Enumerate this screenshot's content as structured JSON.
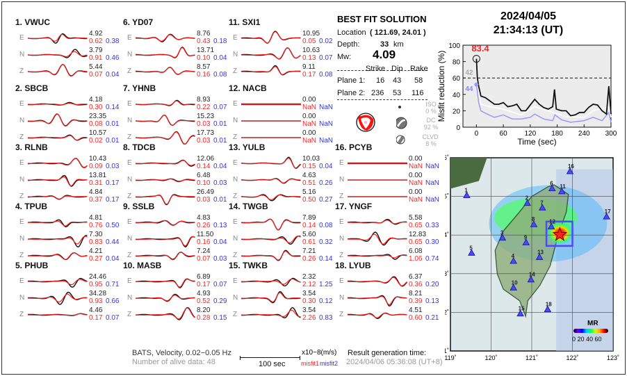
{
  "colors": {
    "observed": "#111111",
    "synthetic": "#ff1a1a",
    "misfit1": "#ff2222",
    "misfit2": "#3333dd",
    "station": "#4a4aff"
  },
  "stations": [
    {
      "label": "1.  VWUC",
      "comps": [
        {
          "c": "E",
          "amp": "4.92",
          "m1": "0.62",
          "m2": "0.38"
        },
        {
          "c": "N",
          "amp": "3.79",
          "m1": "0.91",
          "m2": "0.46"
        },
        {
          "c": "Z",
          "amp": "5.44",
          "m1": "0.07",
          "m2": "0.04"
        }
      ]
    },
    {
      "label": "2.  SBCB",
      "comps": [
        {
          "c": "E",
          "amp": "4.18",
          "m1": "0.30",
          "m2": "0.14"
        },
        {
          "c": "N",
          "amp": "23.35",
          "m1": "0.08",
          "m2": "0.01"
        },
        {
          "c": "Z",
          "amp": "10.57",
          "m1": "0.02",
          "m2": "0.01"
        }
      ]
    },
    {
      "label": "3.  RLNB",
      "comps": [
        {
          "c": "E",
          "amp": "10.43",
          "m1": "0.09",
          "m2": "0.03"
        },
        {
          "c": "N",
          "amp": "13.81",
          "m1": "0.31",
          "m2": "0.17"
        },
        {
          "c": "Z",
          "amp": "4.84",
          "m1": "0.37",
          "m2": "0.17"
        }
      ]
    },
    {
      "label": "4.  TPUB",
      "comps": [
        {
          "c": "E",
          "amp": "4.81",
          "m1": "0.76",
          "m2": "0.50"
        },
        {
          "c": "N",
          "amp": "7.30",
          "m1": "0.83",
          "m2": "0.44"
        },
        {
          "c": "Z",
          "amp": "4.21",
          "m1": "0.27",
          "m2": "0.04"
        }
      ]
    },
    {
      "label": "5.  PHUB",
      "comps": [
        {
          "c": "E",
          "amp": "24.46",
          "m1": "0.95",
          "m2": "0.71"
        },
        {
          "c": "N",
          "amp": "34.28",
          "m1": "0.93",
          "m2": "0.66"
        },
        {
          "c": "Z",
          "amp": "4.46",
          "m1": "0.17",
          "m2": "0.07"
        }
      ]
    },
    {
      "label": "6.  YD07",
      "comps": [
        {
          "c": "E",
          "amp": "8.76",
          "m1": "0.43",
          "m2": "0.18"
        },
        {
          "c": "N",
          "amp": "13.71",
          "m1": "0.10",
          "m2": "0.04"
        },
        {
          "c": "Z",
          "amp": "8.57",
          "m1": "0.16",
          "m2": "0.08"
        }
      ]
    },
    {
      "label": "7.  YHNB",
      "comps": [
        {
          "c": "E",
          "amp": "8.93",
          "m1": "0.22",
          "m2": "0.07"
        },
        {
          "c": "N",
          "amp": "15.23",
          "m1": "0.03",
          "m2": "0.01"
        },
        {
          "c": "Z",
          "amp": "17.73",
          "m1": "0.03",
          "m2": "0.01"
        }
      ]
    },
    {
      "label": "8.  TDCB",
      "comps": [
        {
          "c": "E",
          "amp": "12.06",
          "m1": "0.14",
          "m2": "0.04"
        },
        {
          "c": "N",
          "amp": "6.48",
          "m1": "0.10",
          "m2": "0.03"
        },
        {
          "c": "Z",
          "amp": "26.49",
          "m1": "0.03",
          "m2": "0.01"
        }
      ]
    },
    {
      "label": "9.  SSLB",
      "comps": [
        {
          "c": "E",
          "amp": "4.83",
          "m1": "0.26",
          "m2": "0.13"
        },
        {
          "c": "N",
          "amp": "11.50",
          "m1": "0.16",
          "m2": "0.04"
        },
        {
          "c": "Z",
          "amp": "7.24",
          "m1": "0.07",
          "m2": "0.03"
        }
      ]
    },
    {
      "label": "10. MASB",
      "comps": [
        {
          "c": "E",
          "amp": "6.89",
          "m1": "0.17",
          "m2": "0.07"
        },
        {
          "c": "N",
          "amp": "4.93",
          "m1": "0.52",
          "m2": "0.29"
        },
        {
          "c": "Z",
          "amp": "8.20",
          "m1": "0.28",
          "m2": "0.15"
        }
      ]
    },
    {
      "label": "11. SXI1",
      "comps": [
        {
          "c": "E",
          "amp": "10.95",
          "m1": "0.05",
          "m2": "0.02"
        },
        {
          "c": "N",
          "amp": "10.63",
          "m1": "0.13",
          "m2": "0.07"
        },
        {
          "c": "Z",
          "amp": "9.11",
          "m1": "0.17",
          "m2": "0.08"
        }
      ]
    },
    {
      "label": "12. NACB",
      "comps": [
        {
          "c": "E",
          "amp": "0.00",
          "m1": "NaN",
          "m2": "NaN"
        },
        {
          "c": "N",
          "amp": "0.00",
          "m1": "NaN",
          "m2": "NaN"
        },
        {
          "c": "Z",
          "amp": "0.00",
          "m1": "NaN",
          "m2": "NaN"
        }
      ]
    },
    {
      "label": "13. YULB",
      "comps": [
        {
          "c": "E",
          "amp": "10.03",
          "m1": "0.15",
          "m2": "0.04"
        },
        {
          "c": "N",
          "amp": "4.63",
          "m1": "0.51",
          "m2": "0.26"
        },
        {
          "c": "Z",
          "amp": "5.16",
          "m1": "0.50",
          "m2": "0.27"
        }
      ]
    },
    {
      "label": "14. TWGB",
      "comps": [
        {
          "c": "E",
          "amp": "7.89",
          "m1": "0.14",
          "m2": "0.08"
        },
        {
          "c": "N",
          "amp": "5.60",
          "m1": "0.61",
          "m2": "0.32"
        },
        {
          "c": "Z",
          "amp": "7.21",
          "m1": "0.26",
          "m2": "0.14"
        }
      ]
    },
    {
      "label": "15. TWKB",
      "comps": [
        {
          "c": "E",
          "amp": "2.32",
          "m1": "2.12",
          "m2": "1.25"
        },
        {
          "c": "N",
          "amp": "3.54",
          "m1": "0.30",
          "m2": "0.12"
        },
        {
          "c": "Z",
          "amp": "3.54",
          "m1": "2.26",
          "m2": "0.83"
        }
      ]
    },
    {
      "label": "16. PCYB",
      "comps": [
        {
          "c": "E",
          "amp": "0.00",
          "m1": "NaN",
          "m2": "NaN"
        },
        {
          "c": "N",
          "amp": "0.00",
          "m1": "NaN",
          "m2": "NaN"
        },
        {
          "c": "Z",
          "amp": "0.00",
          "m1": "NaN",
          "m2": "NaN"
        }
      ]
    },
    {
      "label": "17. YNGF",
      "comps": [
        {
          "c": "E",
          "amp": "5.58",
          "m1": "0.65",
          "m2": "0.33"
        },
        {
          "c": "N",
          "amp": "12.83",
          "m1": "0.65",
          "m2": "0.30"
        },
        {
          "c": "Z",
          "amp": "6.08",
          "m1": "1.06",
          "m2": "0.74"
        }
      ]
    },
    {
      "label": "18. LYUB",
      "comps": [
        {
          "c": "E",
          "amp": "6.37",
          "m1": "0.36",
          "m2": "0.20"
        },
        {
          "c": "N",
          "amp": "8.21",
          "m1": "0.39",
          "m2": "0.13"
        },
        {
          "c": "Z",
          "amp": "4.51",
          "m1": "0.60",
          "m2": "0.21"
        }
      ]
    }
  ],
  "footer": {
    "network": "BATS, Velocity, 0.02−0.05 Hz",
    "alive": "Number of alive data: 48",
    "scale_label": "100 sec",
    "units": "x10−8(m/s)",
    "misfit1": "misfit1",
    "misfit2": "misfit2",
    "gen_title": "Result generation time:",
    "gen_time": "2024/04/06 05:36:08 (UT+8)"
  },
  "solution": {
    "title": "BEST FIT SOLUTION",
    "location_label": "Location",
    "location": "( 121.69,  24.01 )",
    "depth_label": "Depth:",
    "depth": "33",
    "depth_unit": "km",
    "mw_label": "Mw:",
    "mw": "4.09",
    "headers": [
      "Strike",
      "Dip",
      "Rake"
    ],
    "planes": [
      {
        "label": "Plane 1:",
        "vals": [
          "16",
          "43",
          "58"
        ]
      },
      {
        "label": "Plane 2:",
        "vals": [
          "236",
          "53",
          "116"
        ]
      }
    ],
    "components": [
      {
        "name": "ISO",
        "pct": "0 %"
      },
      {
        "name": "DC",
        "pct": "92 %"
      },
      {
        "name": "CLVD",
        "pct": "8 %"
      }
    ]
  },
  "event": {
    "date": "2024/04/05",
    "time": "21:34:13  (UT)"
  },
  "chart_data": {
    "type": "line",
    "xlabel": "Time (sec)",
    "ylabel": "Misfit reduction (%)",
    "xlim": [
      -30,
      300
    ],
    "ylim": [
      0,
      100
    ],
    "xticks": [
      0,
      60,
      120,
      180,
      240,
      300
    ],
    "yticks": [
      0,
      20,
      40,
      60,
      80,
      100
    ],
    "grid": false,
    "threshold": 60,
    "annotations": [
      {
        "text": "83.4",
        "x": 0,
        "y": 83.4,
        "color": "#ff2222"
      },
      {
        "text": "42",
        "color": "#aaaaaa"
      },
      {
        "text": "44",
        "color": "#8888ff"
      }
    ],
    "series": [
      {
        "color": "#111111",
        "x": [
          0,
          2,
          5,
          10,
          20,
          30,
          40,
          50,
          60,
          70,
          80,
          90,
          100,
          110,
          120,
          130,
          140,
          150,
          160,
          170,
          174,
          178,
          190,
          200,
          210,
          220,
          230,
          240,
          250,
          260,
          270,
          280,
          290,
          295,
          300
        ],
        "y": [
          83.4,
          60,
          50,
          38,
          36,
          32,
          28,
          28,
          30,
          25,
          26,
          28,
          20,
          20,
          27,
          34,
          28,
          24,
          22,
          25,
          46,
          22,
          20,
          20,
          14,
          15,
          18,
          18,
          24,
          28,
          27,
          20,
          16,
          50,
          16
        ]
      },
      {
        "color": "#ffffff",
        "x": [
          0,
          10,
          30,
          60,
          100,
          130,
          170,
          200,
          240,
          260,
          295,
          300
        ],
        "y": [
          62,
          28,
          25,
          22,
          15,
          25,
          18,
          13,
          12,
          20,
          25,
          12
        ]
      },
      {
        "color": "#9999ff",
        "x": [
          0,
          5,
          10,
          20,
          40,
          60,
          80,
          100,
          120,
          130,
          150,
          170,
          175,
          190,
          210,
          240,
          260,
          280,
          295,
          300
        ],
        "y": [
          52,
          30,
          20,
          17,
          12,
          15,
          10,
          10,
          12,
          16,
          10,
          8,
          15,
          9,
          6,
          8,
          12,
          8,
          18,
          6
        ]
      }
    ]
  },
  "map": {
    "lon_ticks": [
      "119˚",
      "120˚",
      "121˚",
      "122˚",
      "123˚"
    ],
    "lat_ticks": [
      "26˚",
      "25˚",
      "24˚",
      "23˚",
      "22˚",
      "21˚"
    ],
    "colorbar_title": "MR",
    "colorbar_ticks": "0 20 40 60",
    "epicenter": [
      121.69,
      24.01
    ],
    "stations": [
      [
        1,
        119.4,
        25.02
      ],
      [
        2,
        120.89,
        24.82
      ],
      [
        3,
        120.28,
        23.92
      ],
      [
        4,
        120.55,
        23.32
      ],
      [
        5,
        119.52,
        23.53
      ],
      [
        6,
        121.5,
        25.2
      ],
      [
        7,
        121.26,
        24.7
      ],
      [
        8,
        121.05,
        24.27
      ],
      [
        9,
        120.86,
        23.8
      ],
      [
        10,
        120.55,
        22.63
      ],
      [
        11,
        121.74,
        25.12
      ],
      [
        12,
        121.48,
        24.21
      ],
      [
        13,
        121.19,
        23.42
      ],
      [
        14,
        120.98,
        22.84
      ],
      [
        15,
        120.72,
        21.96
      ],
      [
        16,
        121.94,
        25.64
      ],
      [
        17,
        122.84,
        24.47
      ],
      [
        18,
        121.39,
        22.07
      ]
    ]
  }
}
